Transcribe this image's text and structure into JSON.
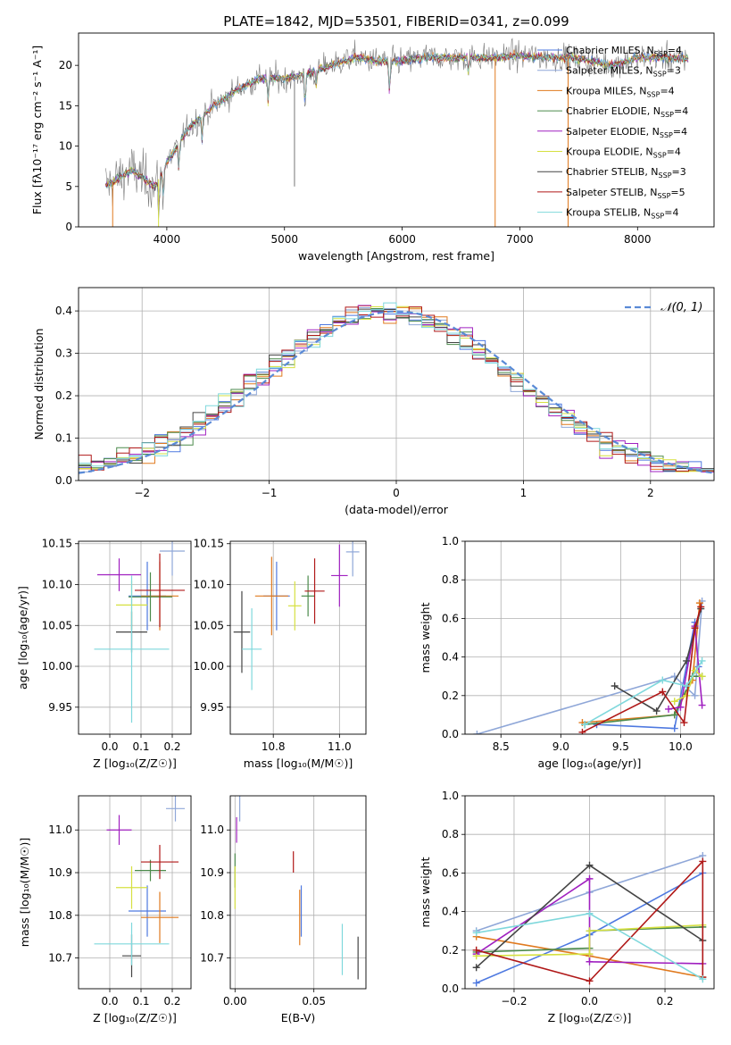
{
  "figure": {
    "title": "PLATE=1842, MJD=53501, FIBERID=0341, z=0.099"
  },
  "models": [
    {
      "name": "Chabrier MILES",
      "nssp": "4",
      "color": "#4e79e0"
    },
    {
      "name": "Salpeter MILES",
      "nssp": "3",
      "color": "#8fa7d8"
    },
    {
      "name": "Kroupa MILES",
      "nssp": "4",
      "color": "#e07a1f"
    },
    {
      "name": "Chabrier ELODIE",
      "nssp": "4",
      "color": "#4b8a4b"
    },
    {
      "name": "Salpeter ELODIE",
      "nssp": "4",
      "color": "#a020c0"
    },
    {
      "name": "Kroupa ELODIE",
      "nssp": "4",
      "color": "#d6e040"
    },
    {
      "name": "Chabrier STELIB",
      "nssp": "3",
      "color": "#444444"
    },
    {
      "name": "Salpeter STELIB",
      "nssp": "5",
      "color": "#b01818"
    },
    {
      "name": "Kroupa STELIB",
      "nssp": "4",
      "color": "#7fd8dc"
    }
  ],
  "chart_data": [
    {
      "id": "spectrum",
      "type": "line",
      "xlabel": "wavelength [Angstrom, rest frame]",
      "ylabel": "Flux [fλ10⁻¹⁷ erg cm⁻² s⁻¹ A⁻¹]",
      "xlim": [
        3250,
        8650
      ],
      "ylim": [
        0,
        24
      ],
      "xticks": [
        4000,
        5000,
        6000,
        7000,
        8000
      ],
      "yticks": [
        0,
        5,
        10,
        15,
        20
      ],
      "legend_position": "right",
      "continuum": {
        "x": [
          3500,
          3700,
          3900,
          4000,
          4200,
          4400,
          4600,
          4800,
          5000,
          5200,
          5400,
          5600,
          5800,
          6000,
          6200,
          6400,
          6600,
          6800,
          7000,
          7200,
          7400,
          7600,
          7800,
          8000,
          8200,
          8400
        ],
        "y": [
          5.2,
          7.0,
          5.0,
          8.0,
          12.5,
          15.0,
          17.0,
          18.5,
          18.3,
          19.0,
          20.0,
          21.0,
          20.5,
          20.5,
          21.0,
          21.0,
          21.0,
          21.0,
          21.2,
          21.0,
          21.0,
          20.5,
          20.0,
          21.0,
          21.0,
          20.8
        ]
      },
      "spikes": [
        {
          "x": 3540,
          "y": 0,
          "color": "#e07a1f"
        },
        {
          "x": 3930,
          "y": 0,
          "color": "#d6e040"
        },
        {
          "x": 5085,
          "y": 5,
          "color": "#777777"
        },
        {
          "x": 6790,
          "y": 0,
          "color": "#e07a1f"
        },
        {
          "x": 7410,
          "y": 0,
          "color": "#e07a1f"
        }
      ]
    },
    {
      "id": "residual-distribution",
      "type": "histogram",
      "xlabel": "(data-model)/error",
      "ylabel": "Normed distribution",
      "xlim": [
        -2.5,
        2.5
      ],
      "ylim": [
        0,
        0.455
      ],
      "xticks": [
        -2,
        -1,
        0,
        1,
        2
      ],
      "yticks": [
        0.0,
        0.1,
        0.2,
        0.3,
        0.4
      ],
      "grid": true,
      "reference_curve": {
        "label": "𝒩(0, 1)",
        "mean": 0,
        "sigma": 1,
        "color": "#5a8ad6"
      },
      "bin_width": 0.1,
      "bin_start": -2.5,
      "legend_position": "top-right"
    },
    {
      "id": "age-vs-Z",
      "type": "scatter",
      "xlabel": "Z [log₁₀(Z/Z☉)]",
      "ylabel": "age  [log₁₀(age/yr)]",
      "xlim": [
        -0.1,
        0.26
      ],
      "ylim": [
        9.917,
        10.153
      ],
      "xticks": [
        0.0,
        0.1,
        0.2
      ],
      "yticks": [
        9.95,
        10.0,
        10.05,
        10.1,
        10.15
      ],
      "grid": true,
      "points": [
        {
          "model": 0,
          "x": 0.12,
          "y": 10.086,
          "xerr": 0.06,
          "yerr": 0.042
        },
        {
          "model": 2,
          "x": 0.16,
          "y": 10.086,
          "xerr": 0.06,
          "yerr": 0.042
        },
        {
          "model": 3,
          "x": 0.13,
          "y": 10.085,
          "xerr": 0.07,
          "yerr": 0.03
        },
        {
          "model": 4,
          "x": 0.03,
          "y": 10.112,
          "xerr": 0.07,
          "yerr": 0.02
        },
        {
          "model": 5,
          "x": 0.07,
          "y": 10.075,
          "xerr": 0.05,
          "yerr": 0.03
        },
        {
          "model": 6,
          "x": 0.07,
          "y": 10.042,
          "xerr": 0.05,
          "yerr": 0.025
        },
        {
          "model": 7,
          "x": 0.16,
          "y": 10.093,
          "xerr": 0.08,
          "yerr": 0.045
        },
        {
          "model": 8,
          "x": 0.07,
          "y": 10.021,
          "xerr": 0.12,
          "yerr": 0.09
        },
        {
          "model": 1,
          "x": 0.2,
          "y": 10.141,
          "xerr": 0.04,
          "yerr": 0.03
        }
      ]
    },
    {
      "id": "age-vs-mass",
      "type": "scatter",
      "xlabel": "mass [log₁₀(M/M☉)]",
      "ylabel": "",
      "xlim": [
        10.67,
        11.08
      ],
      "ylim": [
        9.917,
        10.153
      ],
      "xticks": [
        10.8,
        11.0
      ],
      "yticks": [
        9.95,
        10.0,
        10.05,
        10.1,
        10.15
      ],
      "grid": true,
      "points": [
        {
          "model": 0,
          "x": 10.81,
          "y": 10.086,
          "xerr": 0.04,
          "yerr": 0.042
        },
        {
          "model": 2,
          "x": 10.795,
          "y": 10.086,
          "xerr": 0.05,
          "yerr": 0.048
        },
        {
          "model": 3,
          "x": 10.905,
          "y": 10.086,
          "xerr": 0.02,
          "yerr": 0.025
        },
        {
          "model": 4,
          "x": 11.0,
          "y": 10.111,
          "xerr": 0.025,
          "yerr": 0.038
        },
        {
          "model": 5,
          "x": 10.865,
          "y": 10.074,
          "xerr": 0.02,
          "yerr": 0.03
        },
        {
          "model": 6,
          "x": 10.705,
          "y": 10.042,
          "xerr": 0.025,
          "yerr": 0.05
        },
        {
          "model": 7,
          "x": 10.925,
          "y": 10.092,
          "xerr": 0.03,
          "yerr": 0.04
        },
        {
          "model": 8,
          "x": 10.735,
          "y": 10.021,
          "xerr": 0.03,
          "yerr": 0.05
        },
        {
          "model": 1,
          "x": 11.04,
          "y": 10.14,
          "xerr": 0.02,
          "yerr": 0.03
        }
      ]
    },
    {
      "id": "mass-weight-vs-age",
      "type": "line",
      "xlabel": "age  [log₁₀(age/yr)]",
      "ylabel": "mass weight",
      "xlim": [
        8.2,
        10.28
      ],
      "ylim": [
        0,
        1
      ],
      "xticks": [
        8.5,
        9.0,
        9.5,
        10.0
      ],
      "yticks": [
        0.0,
        0.2,
        0.4,
        0.6,
        0.8,
        1.0
      ],
      "grid": true,
      "series": [
        {
          "model": 0,
          "x": [
            9.3,
            9.95,
            10.12,
            10.15
          ],
          "y": [
            0.05,
            0.03,
            0.58,
            0.35
          ]
        },
        {
          "model": 1,
          "x": [
            8.3,
            9.95,
            10.12,
            10.18
          ],
          "y": [
            0.0,
            0.3,
            0.2,
            0.69
          ]
        },
        {
          "model": 2,
          "x": [
            9.18,
            9.95,
            10.1,
            10.16
          ],
          "y": [
            0.06,
            0.1,
            0.28,
            0.68
          ]
        },
        {
          "model": 3,
          "x": [
            9.2,
            9.95,
            10.1,
            10.18
          ],
          "y": [
            0.05,
            0.1,
            0.3,
            0.3
          ]
        },
        {
          "model": 4,
          "x": [
            9.9,
            10.0,
            10.12,
            10.18
          ],
          "y": [
            0.13,
            0.14,
            0.56,
            0.15
          ]
        },
        {
          "model": 5,
          "x": [
            9.95,
            10.05,
            10.12,
            10.18
          ],
          "y": [
            0.17,
            0.2,
            0.33,
            0.3
          ]
        },
        {
          "model": 6,
          "x": [
            9.45,
            9.8,
            10.05,
            10.17
          ],
          "y": [
            0.25,
            0.12,
            0.38,
            0.65
          ]
        },
        {
          "model": 7,
          "x": [
            9.18,
            9.85,
            10.03,
            10.12,
            10.17
          ],
          "y": [
            0.01,
            0.22,
            0.06,
            0.55,
            0.66
          ]
        },
        {
          "model": 8,
          "x": [
            9.2,
            9.85,
            10.05,
            10.18
          ],
          "y": [
            0.05,
            0.28,
            0.25,
            0.38
          ]
        }
      ]
    },
    {
      "id": "mass-vs-Z",
      "type": "scatter",
      "xlabel": "Z [log₁₀(Z/Z☉)]",
      "ylabel": "mass [log₁₀(M/M☉)]",
      "xlim": [
        -0.1,
        0.26
      ],
      "ylim": [
        10.628,
        11.08
      ],
      "xticks": [
        0.0,
        0.1,
        0.2
      ],
      "yticks": [
        10.7,
        10.8,
        10.9,
        11.0
      ],
      "grid": true,
      "points": [
        {
          "model": 0,
          "x": 0.12,
          "y": 10.81,
          "xerr": 0.06,
          "yerr": 0.06
        },
        {
          "model": 2,
          "x": 0.16,
          "y": 10.795,
          "xerr": 0.06,
          "yerr": 0.06
        },
        {
          "model": 3,
          "x": 0.13,
          "y": 10.905,
          "xerr": 0.05,
          "yerr": 0.025
        },
        {
          "model": 4,
          "x": 0.03,
          "y": 11.0,
          "xerr": 0.04,
          "yerr": 0.035
        },
        {
          "model": 5,
          "x": 0.07,
          "y": 10.865,
          "xerr": 0.05,
          "yerr": 0.05
        },
        {
          "model": 6,
          "x": 0.07,
          "y": 10.705,
          "xerr": 0.03,
          "yerr": 0.05
        },
        {
          "model": 7,
          "x": 0.16,
          "y": 10.925,
          "xerr": 0.06,
          "yerr": 0.04
        },
        {
          "model": 8,
          "x": 0.07,
          "y": 10.733,
          "xerr": 0.12,
          "yerr": 0.05
        },
        {
          "model": 1,
          "x": 0.21,
          "y": 11.05,
          "xerr": 0.03,
          "yerr": 0.03
        }
      ]
    },
    {
      "id": "mass-vs-ebv",
      "type": "scatter",
      "xlabel": "E(B-V)",
      "ylabel": "",
      "xlim": [
        -0.003,
        0.083
      ],
      "ylim": [
        10.628,
        11.08
      ],
      "xticks": [
        0.0,
        0.05
      ],
      "yticks": [
        10.7,
        10.8,
        10.9,
        11.0
      ],
      "grid": true,
      "points": [
        {
          "model": 1,
          "x": 0.003,
          "y": 11.05,
          "xerr": 0.0,
          "yerr": 0.03
        },
        {
          "model": 4,
          "x": 0.001,
          "y": 11.0,
          "xerr": 0.0,
          "yerr": 0.03
        },
        {
          "model": 3,
          "x": 0.0,
          "y": 10.905,
          "xerr": 0.0,
          "yerr": 0.04
        },
        {
          "model": 5,
          "x": 0.0,
          "y": 10.865,
          "xerr": 0.0,
          "yerr": 0.05
        },
        {
          "model": 7,
          "x": 0.037,
          "y": 10.925,
          "xerr": 0.0,
          "yerr": 0.025
        },
        {
          "model": 0,
          "x": 0.042,
          "y": 10.81,
          "xerr": 0.0,
          "yerr": 0.06
        },
        {
          "model": 2,
          "x": 0.041,
          "y": 10.795,
          "xerr": 0.0,
          "yerr": 0.065
        },
        {
          "model": 8,
          "x": 0.068,
          "y": 10.72,
          "xerr": 0.0,
          "yerr": 0.06
        },
        {
          "model": 6,
          "x": 0.078,
          "y": 10.7,
          "xerr": 0.0,
          "yerr": 0.05
        }
      ]
    },
    {
      "id": "mass-weight-vs-Z",
      "type": "line",
      "xlabel": "Z [log₁₀(Z/Z☉)]",
      "ylabel": "mass weight",
      "xlim": [
        -0.33,
        0.33
      ],
      "ylim": [
        0,
        1
      ],
      "xticks": [
        -0.2,
        0.0,
        0.2
      ],
      "yticks": [
        0.0,
        0.2,
        0.4,
        0.6,
        0.8,
        1.0
      ],
      "grid": true,
      "series": [
        {
          "model": 0,
          "x": [
            -0.3,
            0.0,
            0.3
          ],
          "y": [
            0.03,
            0.28,
            0.6
          ]
        },
        {
          "model": 1,
          "x": [
            -0.3,
            0.0,
            0.3
          ],
          "y": [
            0.3,
            0.5,
            0.69
          ]
        },
        {
          "model": 2,
          "x": [
            -0.3,
            0.0,
            0.3
          ],
          "y": [
            0.27,
            0.17,
            0.06
          ]
        },
        {
          "model": 3,
          "x": [
            -0.3,
            0.0,
            0.0,
            0.3
          ],
          "y": [
            0.19,
            0.21,
            0.3,
            0.32
          ]
        },
        {
          "model": 4,
          "x": [
            -0.3,
            0.0,
            0.0,
            0.3
          ],
          "y": [
            0.18,
            0.57,
            0.14,
            0.13
          ]
        },
        {
          "model": 5,
          "x": [
            -0.3,
            0.0,
            0.0,
            0.3
          ],
          "y": [
            0.17,
            0.18,
            0.3,
            0.33
          ]
        },
        {
          "model": 6,
          "x": [
            -0.3,
            0.0,
            0.3
          ],
          "y": [
            0.11,
            0.64,
            0.25
          ]
        },
        {
          "model": 7,
          "x": [
            -0.3,
            0.0,
            0.3,
            0.3
          ],
          "y": [
            0.2,
            0.04,
            0.66,
            0.06
          ]
        },
        {
          "model": 8,
          "x": [
            -0.3,
            0.0,
            0.3
          ],
          "y": [
            0.29,
            0.39,
            0.05
          ]
        }
      ]
    }
  ]
}
